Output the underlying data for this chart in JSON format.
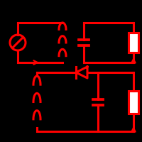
{
  "bg_color": "#000000",
  "line_color": "#ff0000",
  "lw": 2.2,
  "fig_size": [
    2.0,
    2.0
  ],
  "dpi": 100
}
